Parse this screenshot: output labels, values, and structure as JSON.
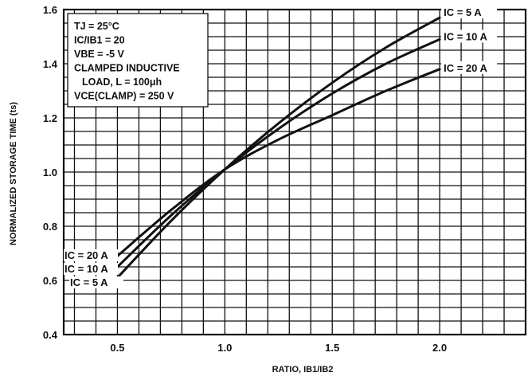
{
  "chart_data": {
    "type": "line",
    "xlabel": "RATIO, IB1/IB2",
    "ylabel": "NORMALIZED STORAGE TIME (ts)",
    "xlim": [
      0.25,
      2.4
    ],
    "ylim": [
      0.4,
      1.6
    ],
    "xticks": [
      "0.5",
      "1.0",
      "1.5",
      "2.0"
    ],
    "yticks": [
      "0.4",
      "0.6",
      "0.8",
      "1.0",
      "1.2",
      "1.4",
      "1.6"
    ],
    "grid": true,
    "conditions": [
      "TJ = 25°C",
      "IC/IB1 = 20",
      "VBE = -5 V",
      "CLAMPED INDUCTIVE",
      "LOAD, L = 100μh",
      "VCE(CLAMP) = 250 V"
    ],
    "series": [
      {
        "name": "IC = 5 A",
        "left_label": "IC = 5 A",
        "x": [
          0.5,
          0.75,
          1.0,
          1.25,
          1.5,
          1.75,
          2.0
        ],
        "y": [
          0.61,
          0.82,
          1.01,
          1.18,
          1.33,
          1.46,
          1.57
        ]
      },
      {
        "name": "IC = 10 A",
        "left_label": "IC = 10 A",
        "x": [
          0.5,
          0.75,
          1.0,
          1.25,
          1.5,
          1.75,
          2.0
        ],
        "y": [
          0.65,
          0.84,
          1.01,
          1.16,
          1.29,
          1.4,
          1.49
        ]
      },
      {
        "name": "IC = 20 A",
        "left_label": "IC = 20 A",
        "x": [
          0.5,
          0.75,
          1.0,
          1.25,
          1.5,
          1.75,
          2.0
        ],
        "y": [
          0.69,
          0.86,
          1.01,
          1.12,
          1.21,
          1.3,
          1.38
        ]
      }
    ]
  }
}
